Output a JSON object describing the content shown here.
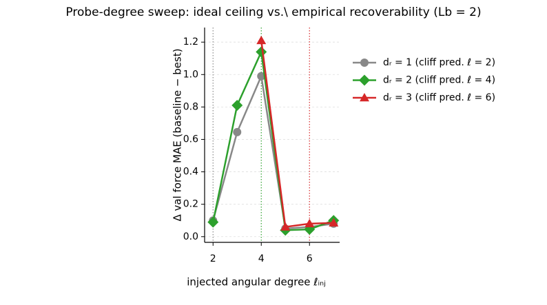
{
  "chart_data": {
    "type": "line",
    "title": "Probe-degree sweep: ideal ceiling vs.\\ empirical recoverability (Lb = 2)",
    "x_label": "injected angular degree ℓᵢₙⱼ",
    "y_label": "Δ val force MAE  (baseline − best)",
    "x": [
      2,
      3,
      4,
      5,
      6,
      7
    ],
    "series": [
      {
        "name": "dᵣ = 1  (cliff pred. ℓ = 2)",
        "color": "#888888",
        "marker": "circle",
        "values": [
          0.1,
          0.645,
          0.99,
          0.05,
          0.06,
          0.08
        ]
      },
      {
        "name": "dᵣ = 2  (cliff pred. ℓ = 4)",
        "color": "#2ca02c",
        "marker": "diamond",
        "values": [
          0.09,
          0.81,
          1.14,
          0.04,
          0.045,
          0.1
        ]
      },
      {
        "name": "dᵣ = 3  (cliff pred. ℓ = 6)",
        "color": "#d62728",
        "marker": "triangle",
        "values": [
          null,
          null,
          1.21,
          0.06,
          0.08,
          0.085
        ]
      }
    ],
    "cliff_lines": [
      {
        "value": 2,
        "color": "#888888"
      },
      {
        "value": 4,
        "color": "#2ca02c"
      },
      {
        "value": 6,
        "color": "#d62728"
      }
    ],
    "xlim": [
      1.65,
      7.25
    ],
    "ylim": [
      -0.035,
      1.29
    ],
    "xticks": [
      2,
      4,
      6
    ],
    "yticks": [
      {
        "value": 0,
        "label": "0.0"
      },
      0.2,
      0.4,
      0.6,
      0.8,
      {
        "value": 1,
        "label": "1.0"
      },
      1.2
    ],
    "grid": true,
    "legend": "outside-right"
  }
}
